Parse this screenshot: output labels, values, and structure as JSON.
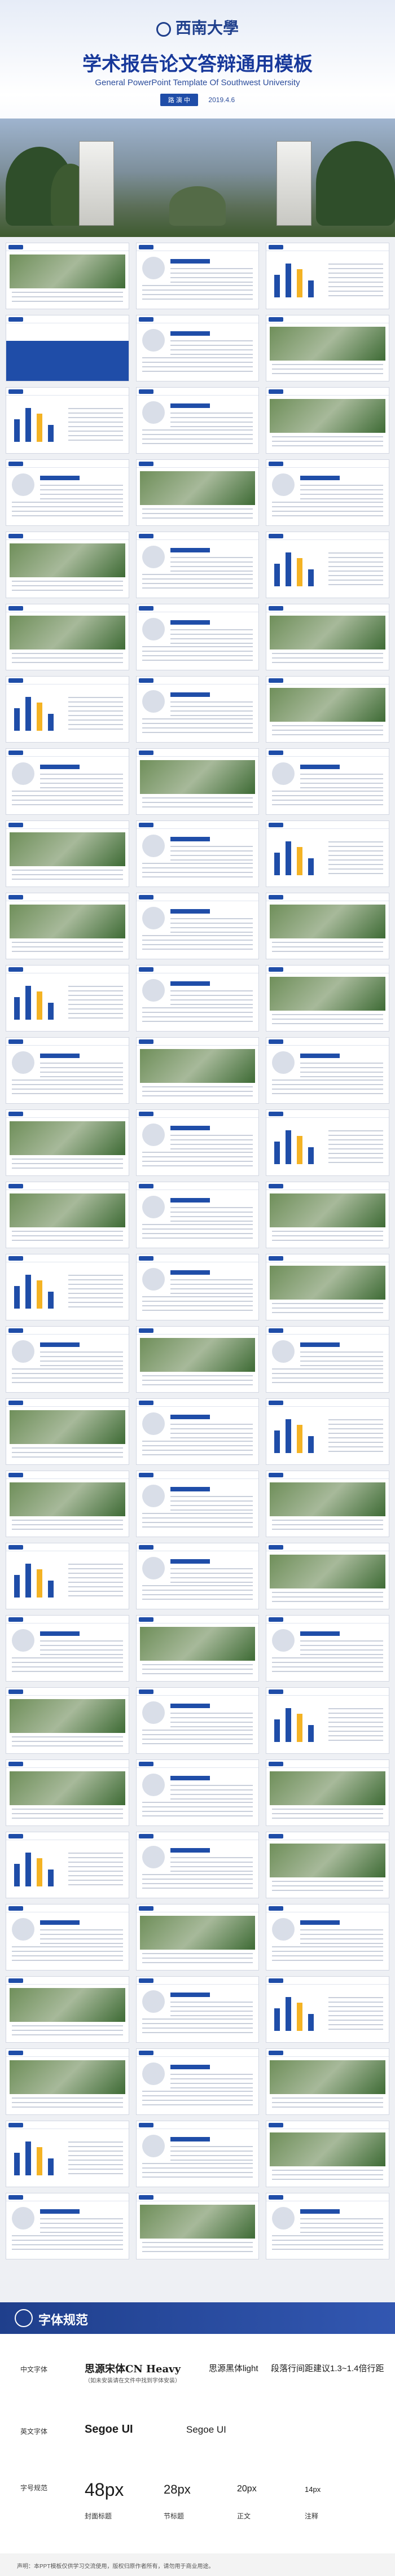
{
  "hero": {
    "university": "西南大學",
    "title": "学术报告论文答辩通用模板",
    "subtitle": "General PowerPoint Template Of Southwest University",
    "presenter_pill": "路 演 中",
    "date": "2019.4.6"
  },
  "thumbs": {
    "caption": "请在这里输入您的标题"
  },
  "font_spec": {
    "heading": "字体规范",
    "cn_label": "中文字体",
    "cn_font_1": "思源宋体CN Heavy",
    "cn_font_1_note": "（如未安装请在文件中找到字体安装）",
    "cn_font_2": "思源黑体light",
    "cn_font_3": "段落行间距建议1.3~1.4倍行距",
    "en_label": "英文字体",
    "en_font_1": "Segoe UI",
    "en_font_2": "Segoe UI",
    "size_label": "字号规范",
    "sizes": [
      {
        "size": "48px",
        "name": "封面标题"
      },
      {
        "size": "28px",
        "name": "节标题"
      },
      {
        "size": "20px",
        "name": "正文"
      },
      {
        "size": "14px",
        "name": "注释"
      }
    ],
    "footer": "声明：本PPT模板仅供学习交流使用，版权归原作者所有，请勿用于商业用途。"
  }
}
